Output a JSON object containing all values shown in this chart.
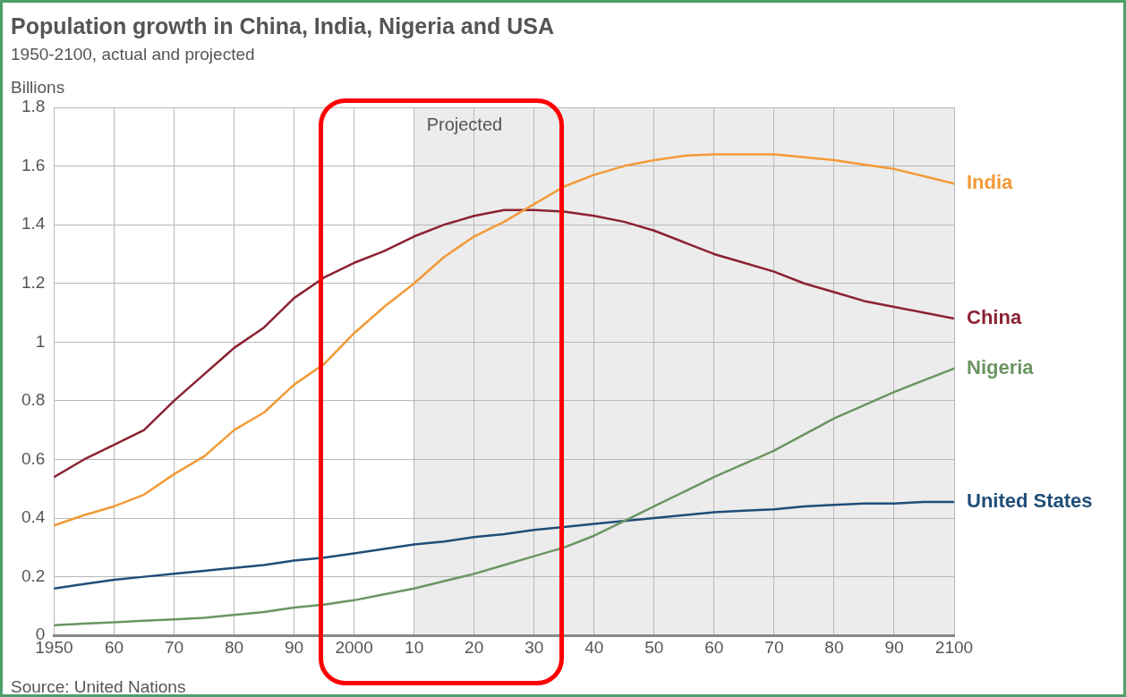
{
  "chart_data": {
    "type": "line",
    "title": "Population growth in China, India, Nigeria and USA",
    "subtitle": "1950-2100, actual and projected",
    "ylabel": "Billions",
    "x": [
      1950,
      1955,
      1960,
      1965,
      1970,
      1975,
      1980,
      1985,
      1990,
      1995,
      2000,
      2005,
      2010,
      2015,
      2020,
      2025,
      2030,
      2035,
      2040,
      2045,
      2050,
      2055,
      2060,
      2065,
      2070,
      2075,
      2080,
      2085,
      2090,
      2095,
      2100
    ],
    "series": [
      {
        "name": "India",
        "color": "#f29a38",
        "values": [
          0.375,
          0.41,
          0.44,
          0.48,
          0.55,
          0.61,
          0.7,
          0.76,
          0.855,
          0.925,
          1.03,
          1.12,
          1.2,
          1.29,
          1.36,
          1.41,
          1.47,
          1.53,
          1.57,
          1.6,
          1.62,
          1.635,
          1.64,
          1.64,
          1.64,
          1.63,
          1.62,
          1.605,
          1.59,
          1.565,
          1.54
        ]
      },
      {
        "name": "China",
        "color": "#8b2232",
        "values": [
          0.54,
          0.6,
          0.65,
          0.7,
          0.8,
          0.89,
          0.98,
          1.05,
          1.15,
          1.22,
          1.27,
          1.31,
          1.36,
          1.4,
          1.43,
          1.45,
          1.45,
          1.445,
          1.43,
          1.41,
          1.38,
          1.34,
          1.3,
          1.27,
          1.24,
          1.2,
          1.17,
          1.14,
          1.12,
          1.1,
          1.08
        ]
      },
      {
        "name": "Nigeria",
        "color": "#6b9563",
        "values": [
          0.035,
          0.04,
          0.045,
          0.05,
          0.055,
          0.06,
          0.07,
          0.08,
          0.095,
          0.105,
          0.12,
          0.14,
          0.16,
          0.185,
          0.21,
          0.24,
          0.27,
          0.3,
          0.34,
          0.39,
          0.44,
          0.49,
          0.54,
          0.585,
          0.63,
          0.685,
          0.74,
          0.785,
          0.83,
          0.87,
          0.91
        ]
      },
      {
        "name": "United States",
        "color": "#1f4e79",
        "values": [
          0.16,
          0.175,
          0.19,
          0.2,
          0.21,
          0.22,
          0.23,
          0.24,
          0.255,
          0.265,
          0.28,
          0.295,
          0.31,
          0.32,
          0.335,
          0.345,
          0.36,
          0.37,
          0.38,
          0.39,
          0.4,
          0.41,
          0.42,
          0.425,
          0.43,
          0.44,
          0.445,
          0.45,
          0.45,
          0.455,
          0.455
        ]
      }
    ],
    "xlim": [
      1950,
      2100
    ],
    "xticks": [
      1950,
      {
        "value": 1960,
        "label": "60"
      },
      {
        "value": 1970,
        "label": "70"
      },
      {
        "value": 1980,
        "label": "80"
      },
      {
        "value": 1990,
        "label": "90"
      },
      2000,
      {
        "value": 2010,
        "label": "10"
      },
      {
        "value": 2020,
        "label": "20"
      },
      {
        "value": 2030,
        "label": "30"
      },
      {
        "value": 2040,
        "label": "40"
      },
      {
        "value": 2050,
        "label": "50"
      },
      {
        "value": 2060,
        "label": "60"
      },
      {
        "value": 2070,
        "label": "70"
      },
      {
        "value": 2080,
        "label": "80"
      },
      {
        "value": 2090,
        "label": "90"
      },
      2100
    ],
    "ylim": [
      0,
      1.8
    ],
    "yticks": [
      0,
      0.2,
      0.4,
      0.6,
      0.8,
      1,
      1.2,
      1.4,
      1.6,
      1.8
    ],
    "bands": [
      {
        "axis": "x",
        "from": 2010,
        "to": 2100,
        "label": "Projected",
        "color": "#ececec"
      }
    ],
    "grid": true,
    "legend": false,
    "marker": "none",
    "line_style": "solid",
    "annotations": [
      "Source: United Nations"
    ]
  }
}
